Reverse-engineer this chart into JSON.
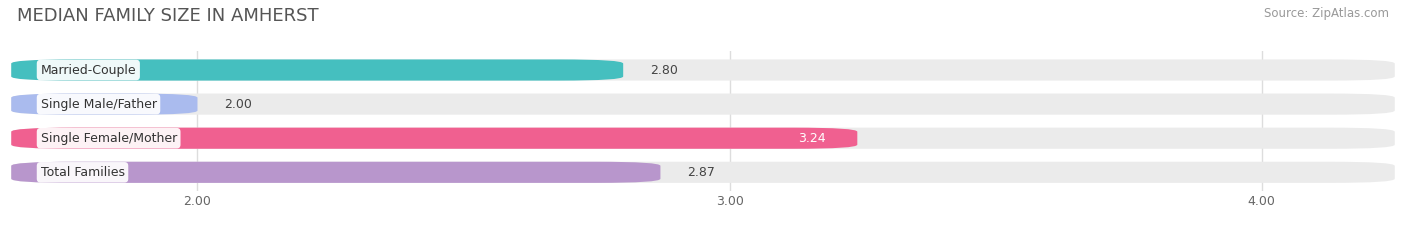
{
  "title": "MEDIAN FAMILY SIZE IN AMHERST",
  "source": "Source: ZipAtlas.com",
  "categories": [
    "Married-Couple",
    "Single Male/Father",
    "Single Female/Mother",
    "Total Families"
  ],
  "values": [
    2.8,
    2.0,
    3.24,
    2.87
  ],
  "bar_colors": [
    "#45bfbf",
    "#aabbee",
    "#f06090",
    "#b896cc"
  ],
  "bar_labels": [
    "2.80",
    "2.00",
    "3.24",
    "2.87"
  ],
  "label_in_bar": [
    false,
    false,
    true,
    false
  ],
  "xlim_left": 1.65,
  "xlim_right": 4.25,
  "xticks": [
    2.0,
    3.0,
    4.0
  ],
  "xtick_labels": [
    "2.00",
    "3.00",
    "4.00"
  ],
  "background_color": "#ffffff",
  "bar_bg_color": "#ebebeb",
  "title_fontsize": 13,
  "label_fontsize": 9,
  "value_fontsize": 9,
  "source_fontsize": 8.5,
  "bar_height": 0.62,
  "bar_gap": 0.18
}
